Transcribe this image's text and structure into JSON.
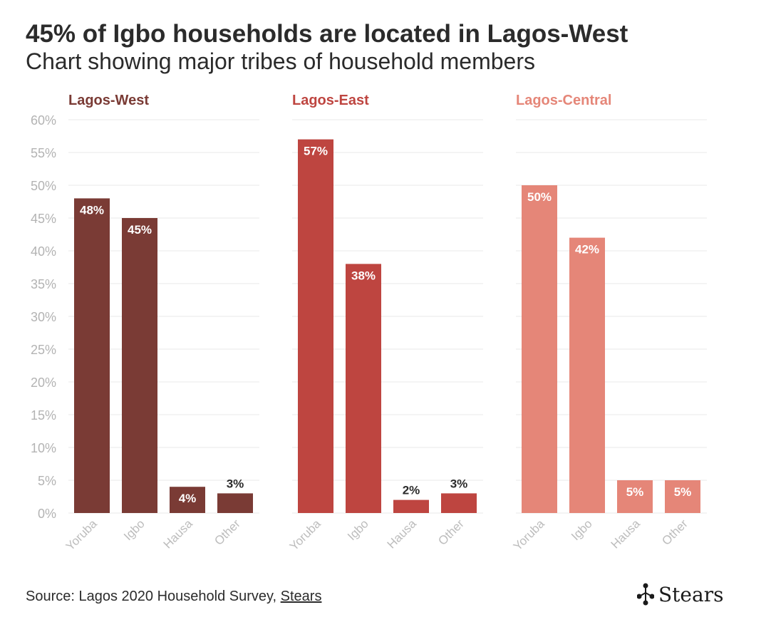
{
  "title": "45% of Igbo households are located in Lagos-West",
  "subtitle": "Chart showing major tribes of household members",
  "source": {
    "prefix": "Source: Lagos 2020 Household Survey, ",
    "link": "Stears"
  },
  "logo": {
    "icon": "stears-logo-icon",
    "text": "Stears"
  },
  "chart_data": {
    "type": "bar",
    "ylim": [
      0,
      60
    ],
    "yticks": [
      "0%",
      "5%",
      "10%",
      "15%",
      "20%",
      "25%",
      "30%",
      "35%",
      "40%",
      "45%",
      "50%",
      "55%",
      "60%"
    ],
    "categories": [
      "Yoruba",
      "Igbo",
      "Hausa",
      "Other"
    ],
    "panels": [
      {
        "name": "Lagos-West",
        "color": "#7a3b35",
        "values": [
          48,
          45,
          4,
          3
        ],
        "labels": [
          "48%",
          "45%",
          "4%",
          "3%"
        ]
      },
      {
        "name": "Lagos-East",
        "color": "#be4540",
        "values": [
          57,
          38,
          2,
          3
        ],
        "labels": [
          "57%",
          "38%",
          "2%",
          "3%"
        ]
      },
      {
        "name": "Lagos-Central",
        "color": "#e58678",
        "values": [
          50,
          42,
          5,
          5
        ],
        "labels": [
          "50%",
          "42%",
          "5%",
          "5%"
        ]
      }
    ]
  }
}
